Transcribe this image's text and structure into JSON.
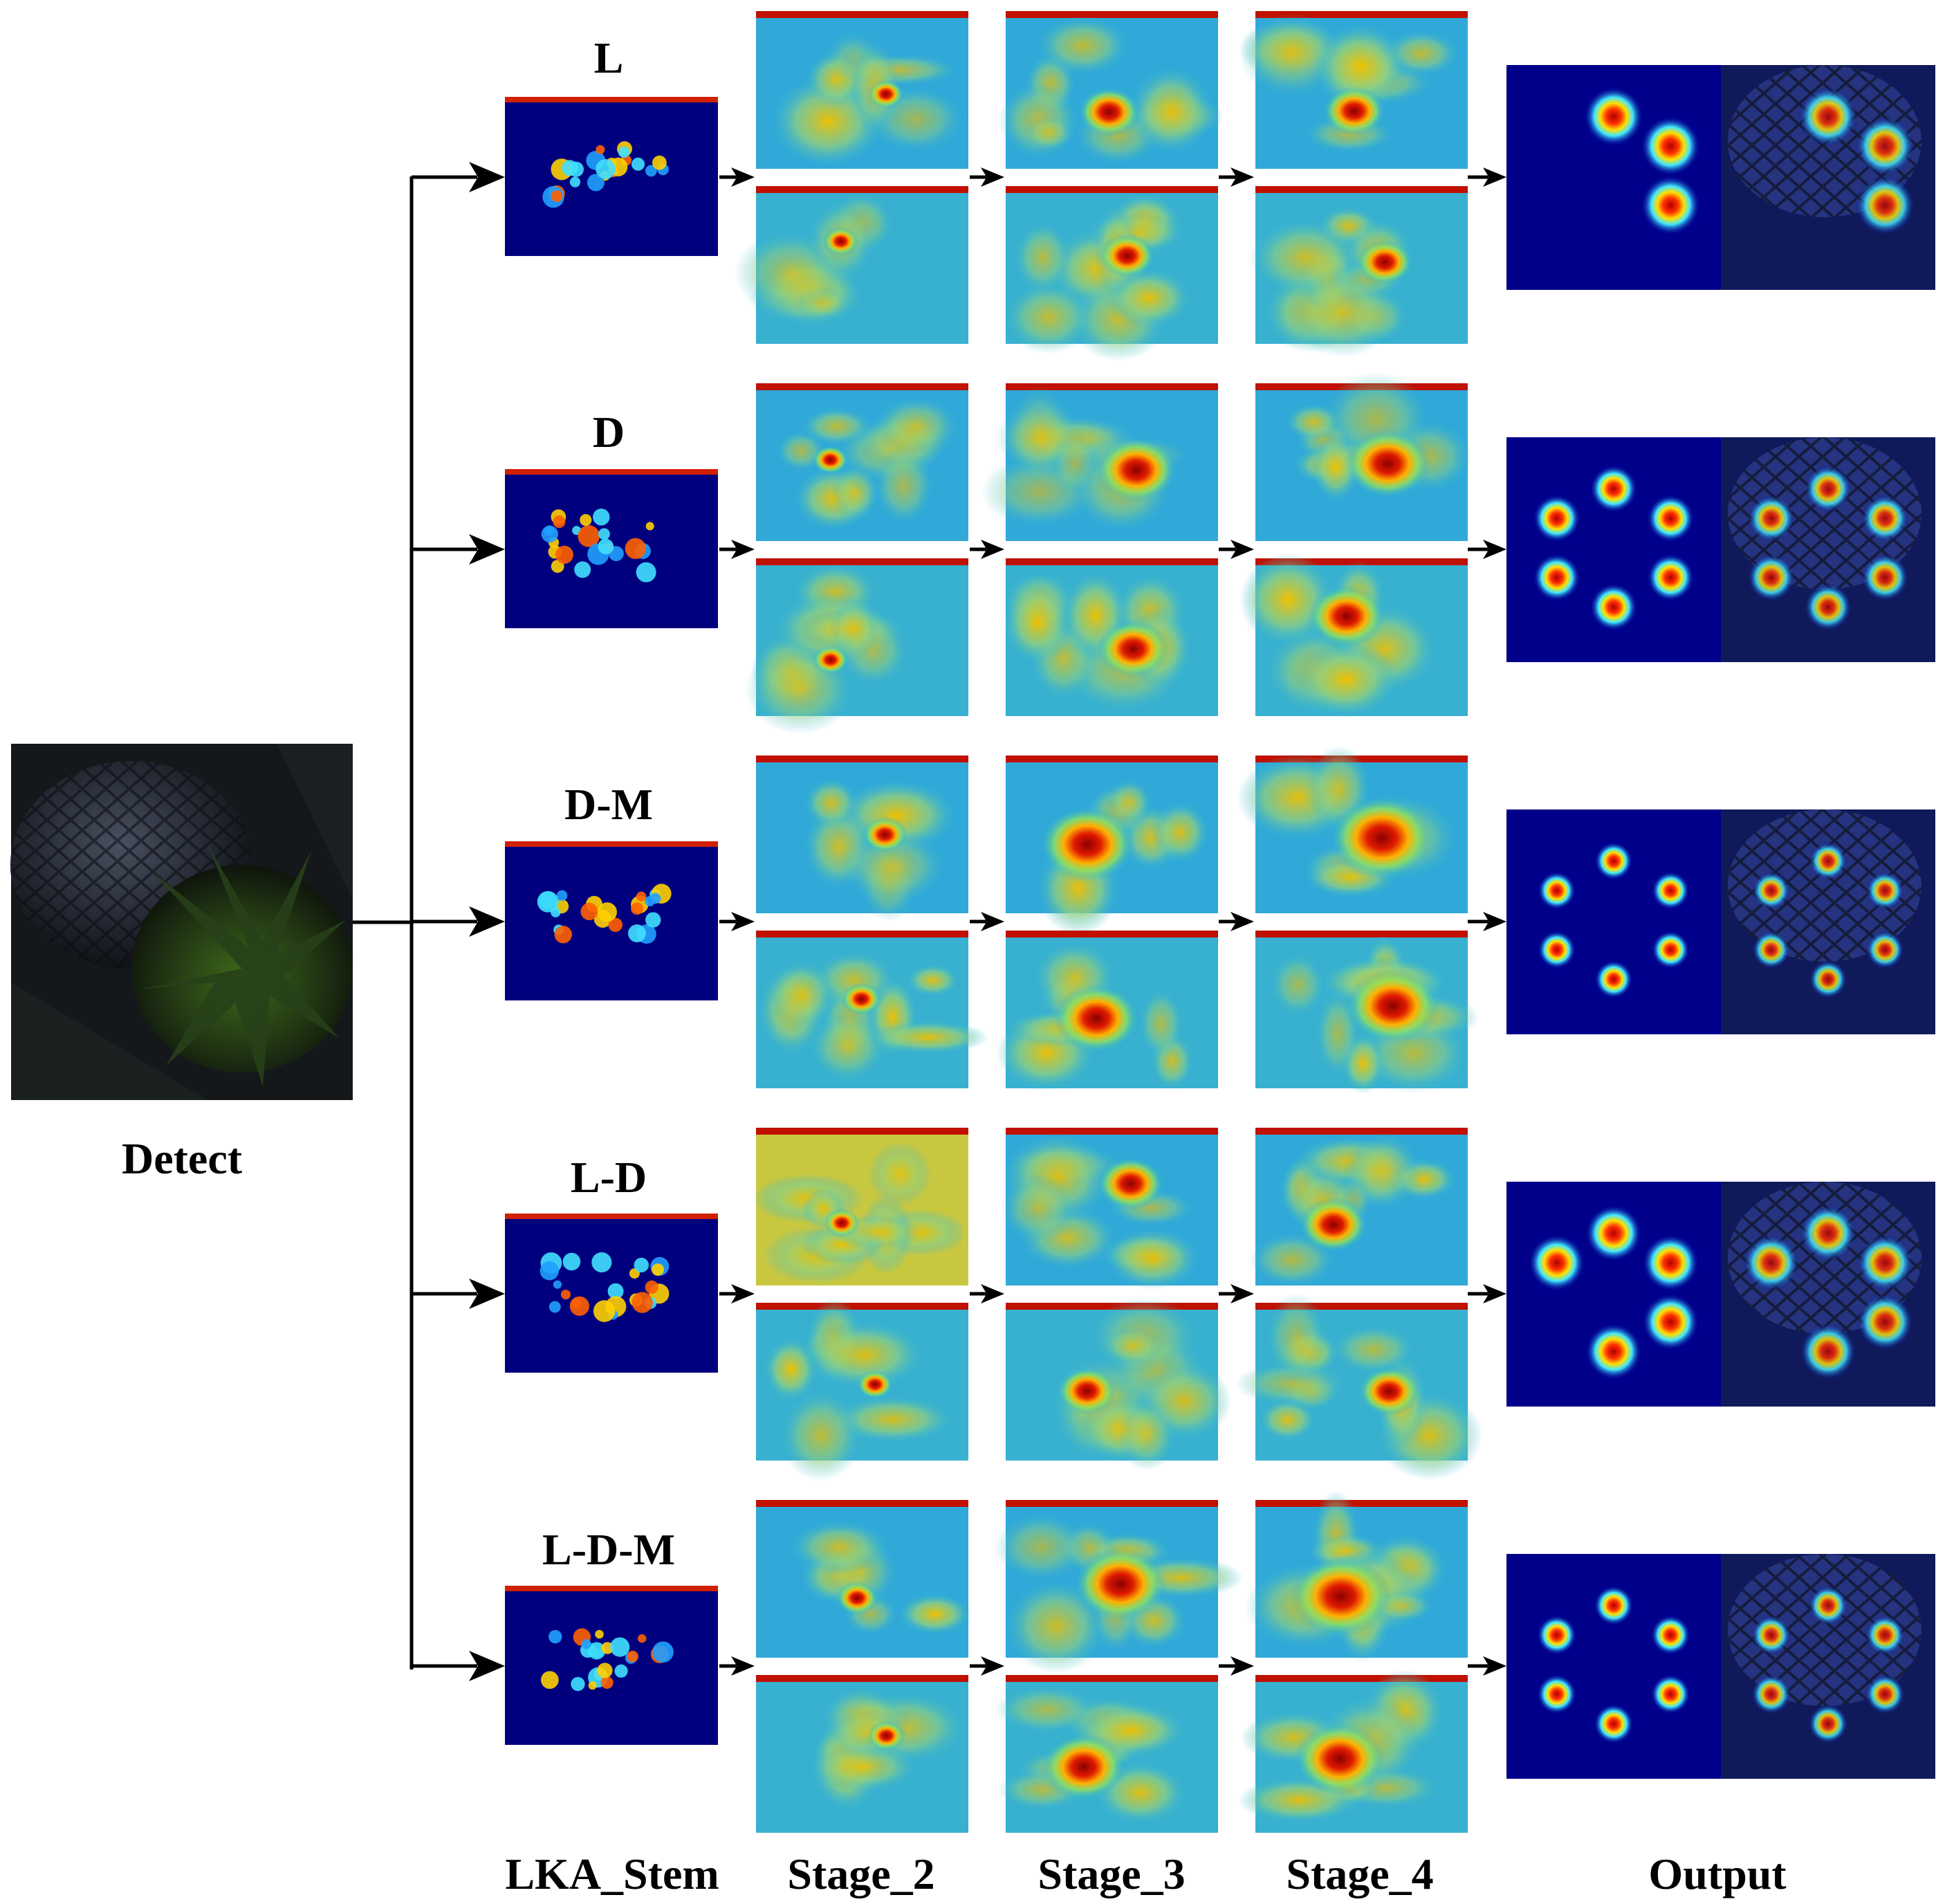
{
  "input_label": "Detect",
  "rows": [
    {
      "label": "L",
      "spread": 0.95,
      "spots": 3
    },
    {
      "label": "D",
      "spread": 0.55,
      "spots": 6
    },
    {
      "label": "D-M",
      "spread": 0.25,
      "spots": 6
    },
    {
      "label": "L-D",
      "spread": 0.85,
      "spots": 5
    },
    {
      "label": "L-D-M",
      "spread": 0.3,
      "spots": 6
    }
  ],
  "columns": {
    "stem": "LKA_Stem",
    "stage2": "Stage_2",
    "stage3": "Stage_3",
    "stage4": "Stage_4",
    "output": "Output"
  },
  "colors": {
    "heat_low": "#00007f",
    "heat_mid": "#1fa8e0",
    "heat_high": "#a80000",
    "arrow": "#000000",
    "photo_bg": "#15181a"
  }
}
